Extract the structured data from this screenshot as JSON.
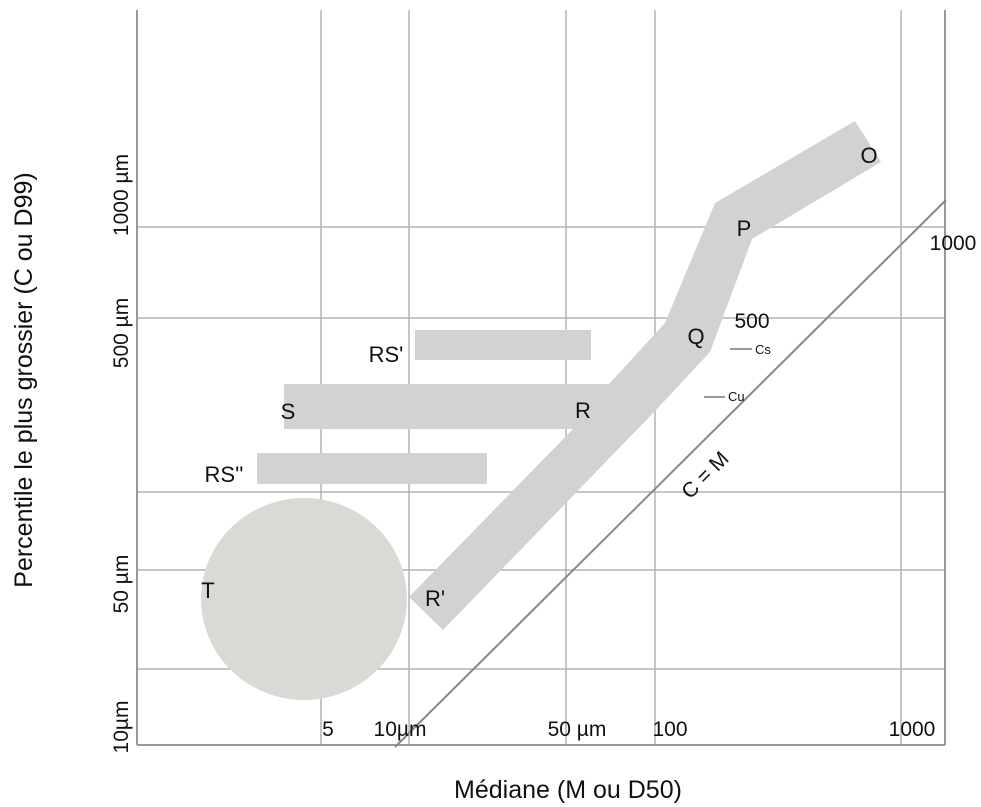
{
  "chart_data": {
    "type": "diagram",
    "xlabel": "Médiane (M ou D50)",
    "ylabel": "Percentile le plus grossier (C ou D99)",
    "x_scale": "log",
    "y_scale": "log",
    "x_ticks": [
      "5",
      "10µm",
      "50 µm",
      "100",
      "1000"
    ],
    "y_ticks": [
      "10µm",
      "50 µm",
      "500 µm",
      "1000 µm"
    ],
    "grid": true,
    "zones": [
      "O",
      "P",
      "Q",
      "R",
      "R'",
      "S",
      "RS'",
      "RS''",
      "T"
    ],
    "reference_line": {
      "label": "C = M",
      "marks": [
        "500",
        "1000"
      ],
      "limits": [
        "Cs",
        "Cu"
      ]
    }
  }
}
